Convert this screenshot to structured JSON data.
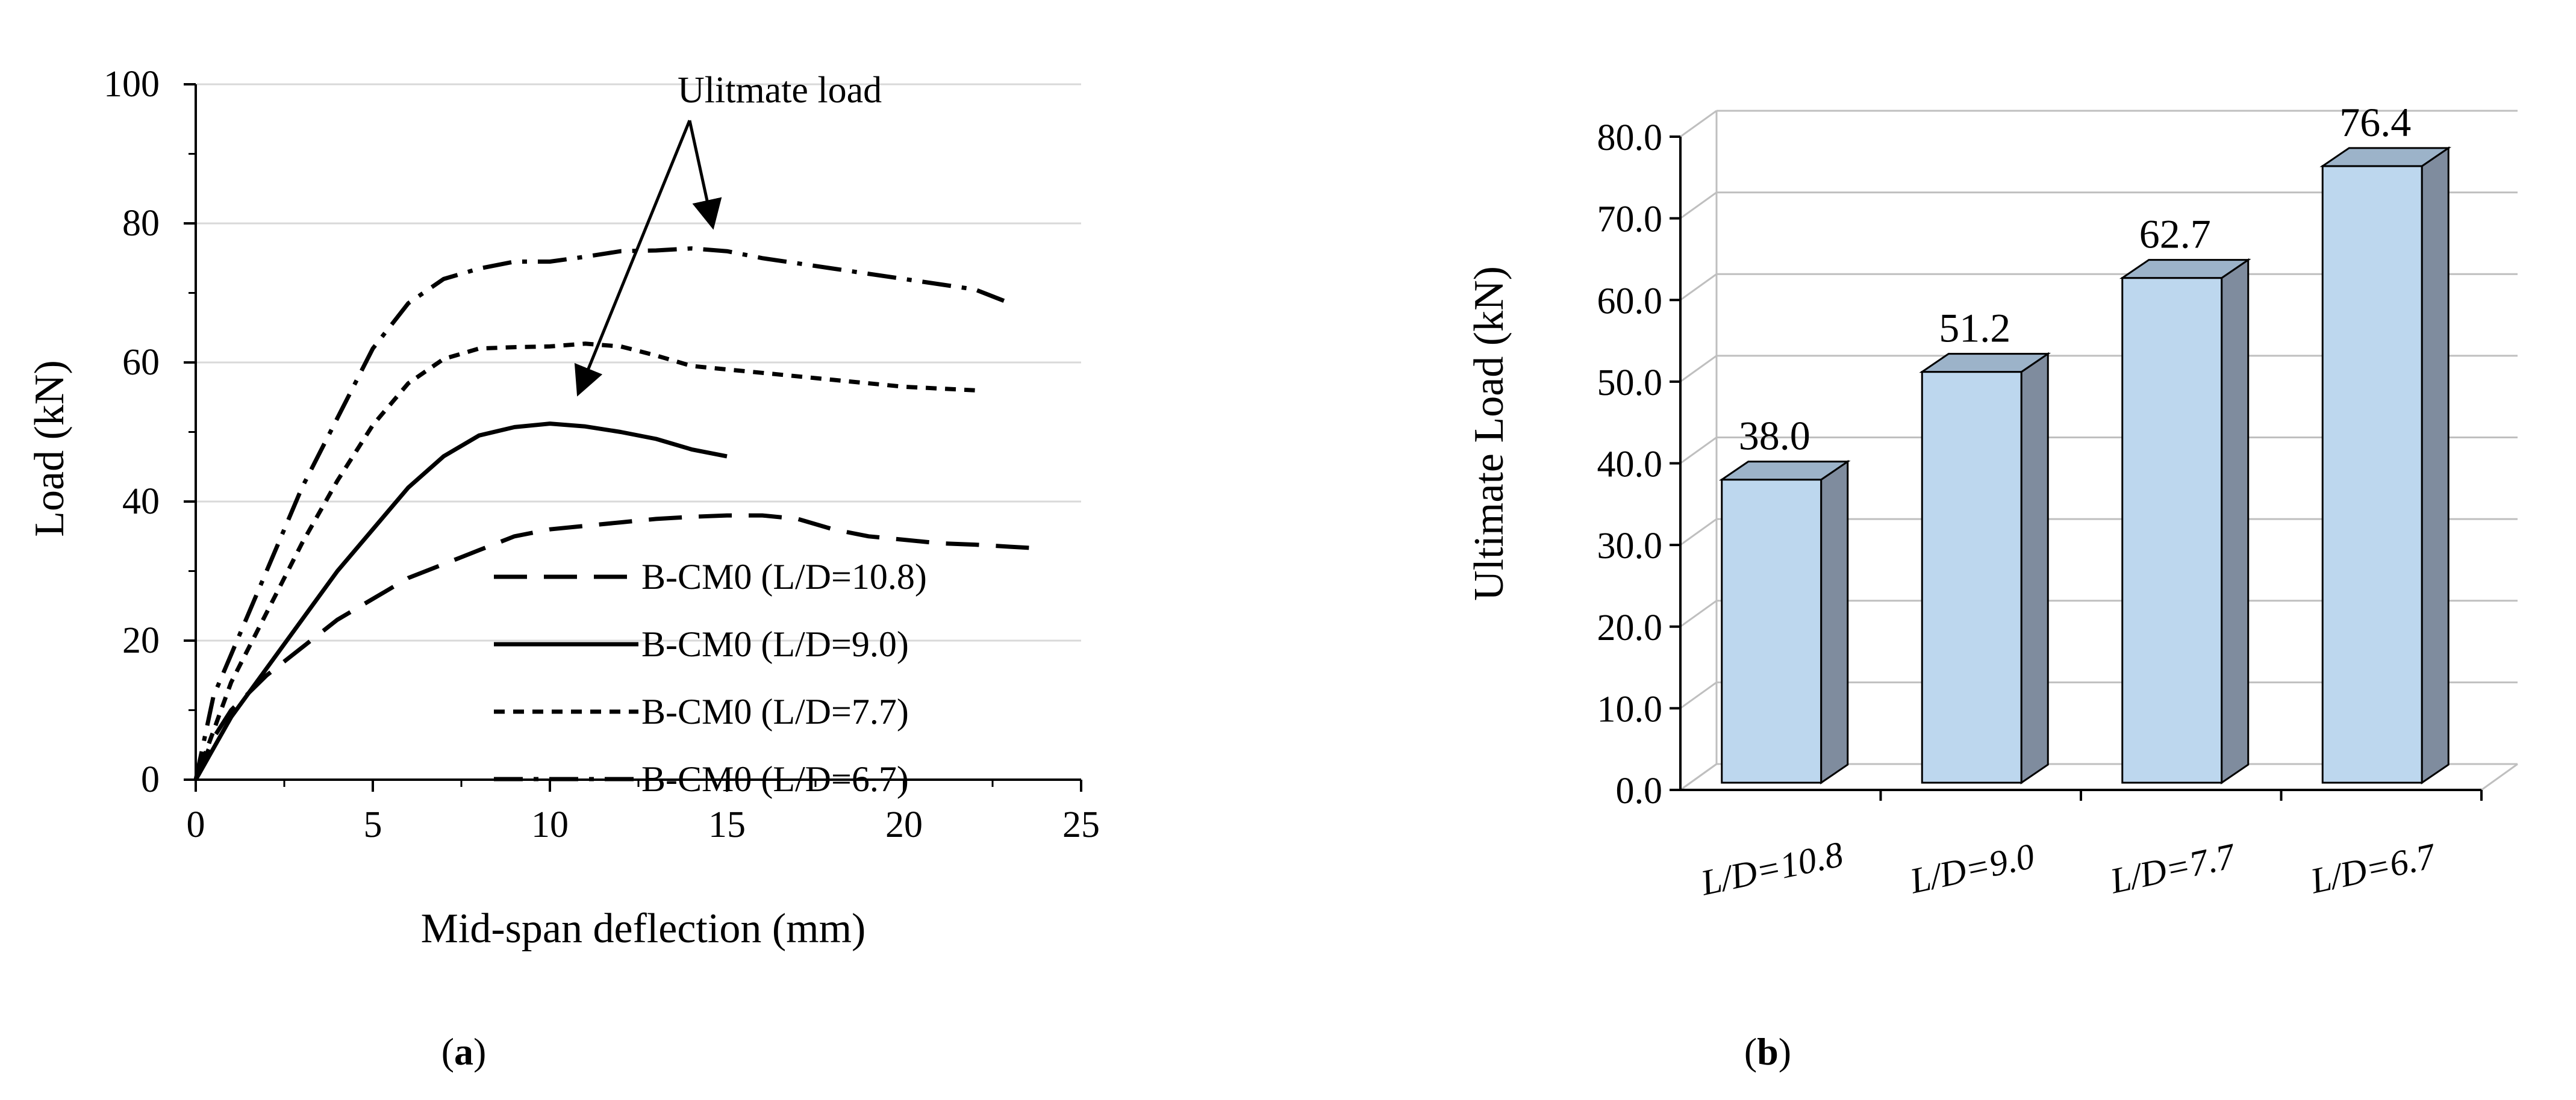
{
  "chart_data": [
    {
      "type": "line",
      "panel_label": "(a)",
      "caption_letter": "a",
      "xlabel": "Mid-span deflection (mm)",
      "ylabel": "Load (kN)",
      "xlim": [
        0,
        25
      ],
      "ylim": [
        0,
        100
      ],
      "x_ticks": [
        0,
        5,
        10,
        15,
        20,
        25
      ],
      "y_ticks": [
        0,
        20,
        40,
        60,
        80,
        100
      ],
      "grid": true,
      "annotation": "Ulitmate load",
      "series": [
        {
          "name": "B-CM0 (L/D=10.8)",
          "style": "long-dash",
          "x": [
            0,
            0.5,
            1,
            2,
            3,
            4,
            5,
            6,
            7,
            8,
            9,
            10,
            11,
            12,
            13,
            14,
            15,
            16,
            17,
            18,
            19,
            20,
            21,
            22,
            23,
            24
          ],
          "y": [
            0,
            6,
            10,
            15,
            19,
            23,
            26,
            29,
            31,
            33,
            35,
            36,
            36.5,
            37,
            37.5,
            37.8,
            38.0,
            38.0,
            37.5,
            36,
            35,
            34.5,
            34,
            33.8,
            33.5,
            33.2
          ]
        },
        {
          "name": "B-CM0 (L/D=9.0)",
          "style": "solid",
          "x": [
            0,
            1,
            2,
            3,
            4,
            5,
            6,
            7,
            8,
            9,
            10,
            11,
            12,
            13,
            14,
            15
          ],
          "y": [
            0,
            9,
            16,
            23,
            30,
            36,
            42,
            46.5,
            49.5,
            50.7,
            51.2,
            50.8,
            50,
            49,
            47.5,
            46.5
          ]
        },
        {
          "name": "B-CM0 (L/D=7.7)",
          "style": "short-dash",
          "x": [
            0,
            1,
            2,
            3,
            4,
            5,
            6,
            7,
            8,
            9,
            10,
            11,
            12,
            13,
            14,
            15,
            16,
            18,
            20,
            22
          ],
          "y": [
            0,
            14,
            24,
            34,
            43,
            51,
            57,
            60.5,
            62,
            62.2,
            62.3,
            62.7,
            62.3,
            61,
            59.5,
            59,
            58.5,
            57.5,
            56.5,
            56
          ]
        },
        {
          "name": "B-CM0 (L/D=6.7)",
          "style": "dash-dot",
          "x": [
            0,
            0.5,
            1,
            2,
            3,
            4,
            5,
            6,
            7,
            8,
            9,
            10,
            11,
            12,
            13,
            14,
            15,
            16,
            18,
            20,
            22,
            23
          ],
          "y": [
            0,
            12,
            18,
            30,
            42,
            52,
            62,
            68.5,
            72,
            73.5,
            74.5,
            74.5,
            75.2,
            76,
            76.1,
            76.4,
            76,
            75,
            73.5,
            72,
            70.5,
            68.5
          ]
        }
      ]
    },
    {
      "type": "bar",
      "panel_label": "(b)",
      "caption_letter": "b",
      "ylabel": "Ultimate Load (kN)",
      "xlabel": "",
      "ylim": [
        0,
        80
      ],
      "y_ticks": [
        "0.0",
        "10.0",
        "20.0",
        "30.0",
        "40.0",
        "50.0",
        "60.0",
        "70.0",
        "80.0"
      ],
      "categories": [
        "L/D=10.8",
        "L/D=9.0",
        "L/D=7.7",
        "L/D=6.7"
      ],
      "values": [
        38.0,
        51.2,
        62.7,
        76.4
      ],
      "value_labels": [
        "38.0",
        "51.2",
        "62.7",
        "76.4"
      ],
      "colors": {
        "front": "#bdd7ee",
        "side": "#7f8c9e",
        "top": "#9cb3c9"
      }
    }
  ]
}
